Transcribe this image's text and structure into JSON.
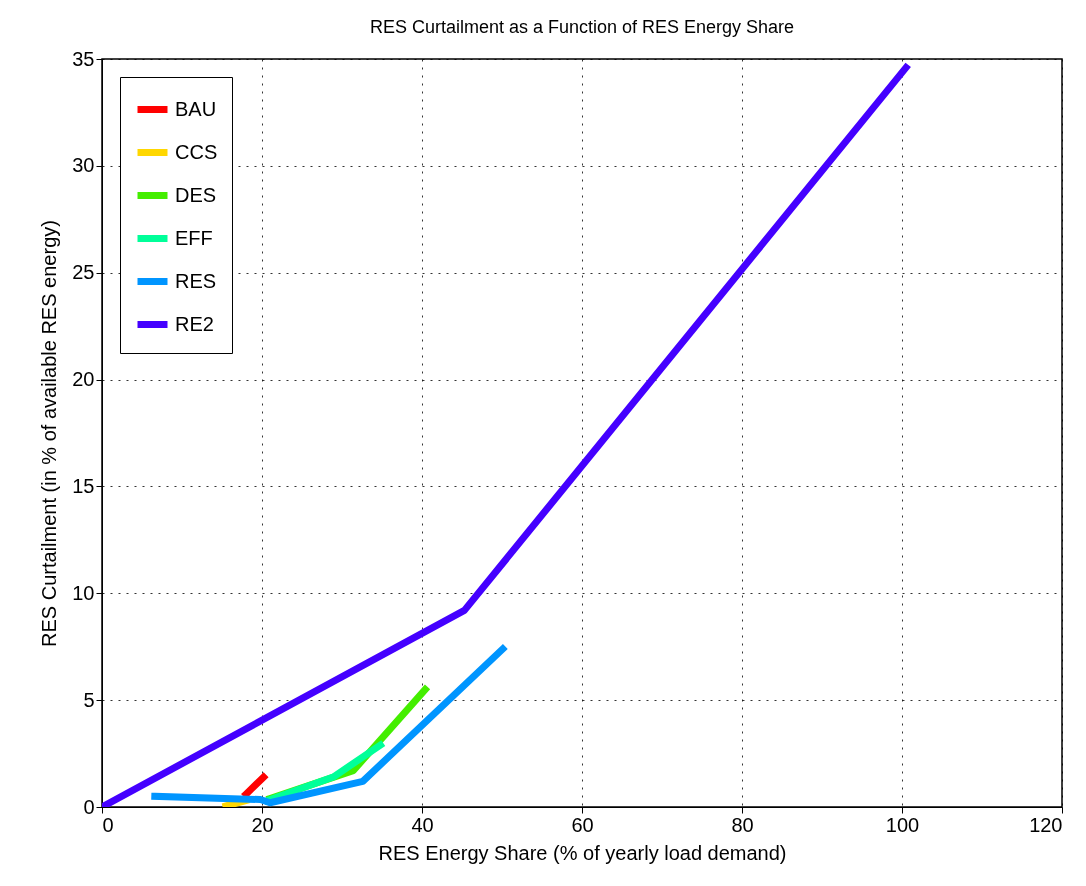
{
  "chart_data": {
    "type": "line",
    "title": "RES Curtailment as a Function of RES Energy Share",
    "xlabel": "RES Energy Share (% of yearly load demand)",
    "ylabel": "RES Curtailment (in % of available RES energy)",
    "xlim": [
      0,
      120
    ],
    "xticks": [
      0,
      20,
      40,
      60,
      80,
      100,
      120
    ],
    "ylim": [
      0,
      35
    ],
    "yticks": [
      0,
      5,
      10,
      15,
      20,
      25,
      30,
      35
    ],
    "grid": true,
    "legend": "top left",
    "line_style": "solid",
    "series": [
      {
        "name": "BAU",
        "color": "#ff0000",
        "x": [
          18,
          20.2
        ],
        "values": [
          0.6,
          1.4
        ]
      },
      {
        "name": "CCS",
        "color": "#ffd700",
        "x": [
          15.5,
          18
        ],
        "values": [
          0.05,
          0.3
        ]
      },
      {
        "name": "DES",
        "color": "#44ee00",
        "x": [
          21,
          31.4,
          40.4
        ],
        "values": [
          0.4,
          1.7,
          5.5
        ]
      },
      {
        "name": "EFF",
        "color": "#00ff99",
        "x": [
          20.7,
          28.9,
          34.8
        ],
        "values": [
          0.3,
          1.4,
          2.9
        ]
      },
      {
        "name": "RES",
        "color": "#0095ff",
        "x": [
          6.6,
          19.8,
          21,
          32.6,
          50.1
        ],
        "values": [
          0.5,
          0.35,
          0.2,
          1.2,
          7.4
        ]
      },
      {
        "name": "RE2",
        "color": "#4400ff",
        "x": [
          0,
          45.3,
          100.5
        ],
        "values": [
          0,
          9.2,
          34.6
        ]
      }
    ]
  }
}
